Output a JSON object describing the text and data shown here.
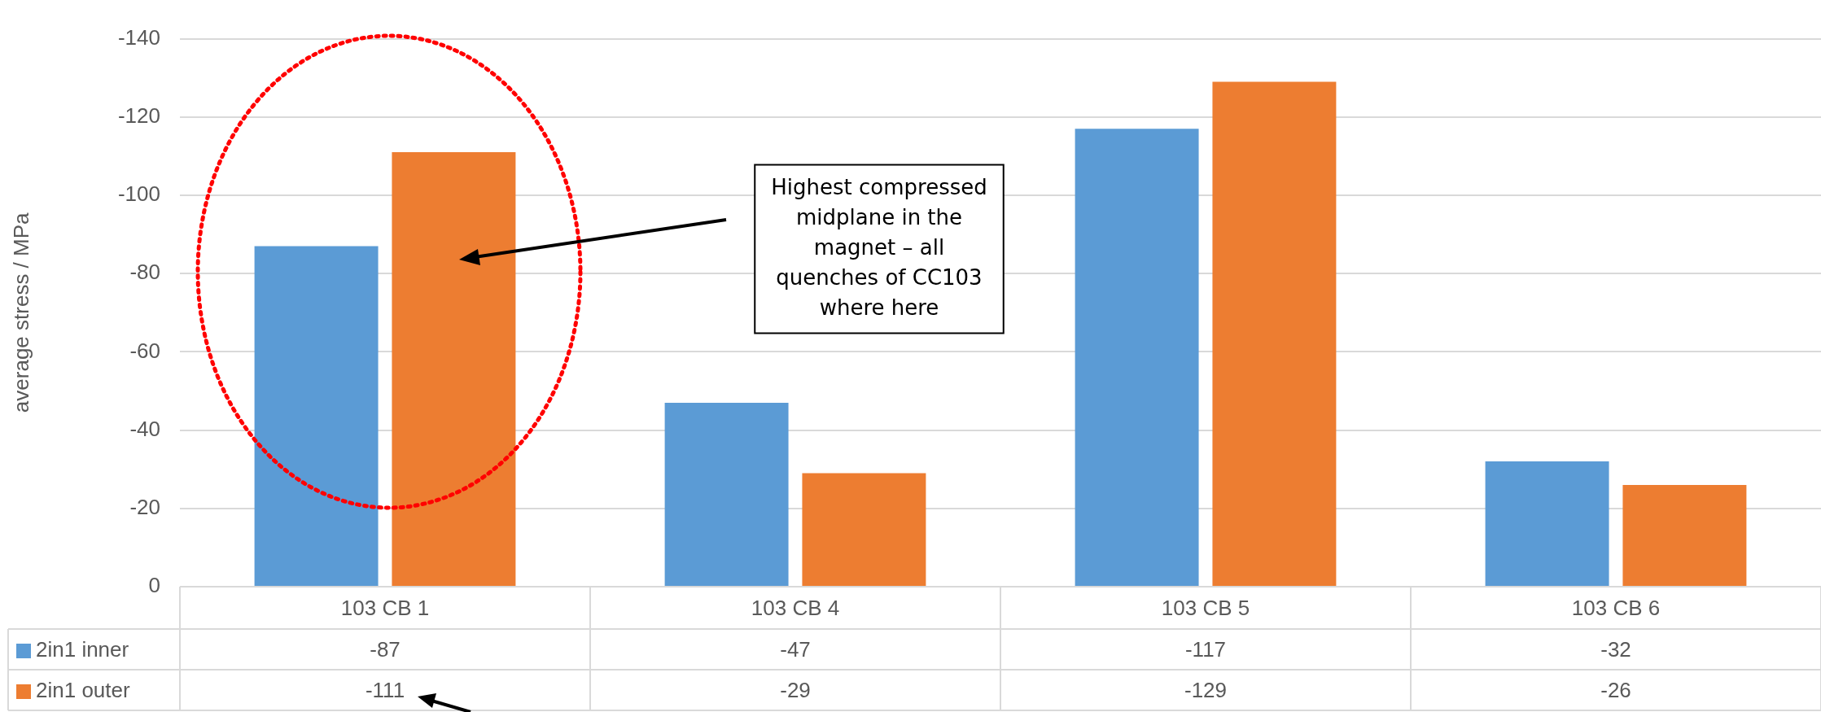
{
  "chart_data": {
    "type": "bar",
    "ylabel": "average stress / MPa",
    "categories": [
      "103 CB 1",
      "103 CB 4",
      "103 CB 5",
      "103 CB 6"
    ],
    "series": [
      {
        "name": "2in1 inner",
        "color": "#5b9bd5",
        "values": [
          -87,
          -47,
          -117,
          -32
        ]
      },
      {
        "name": "2in1 outer",
        "color": "#ed7d31",
        "values": [
          -111,
          -29,
          -129,
          -26
        ]
      }
    ],
    "ylim": [
      0,
      -140
    ],
    "yticks": [
      0,
      -20,
      -40,
      -60,
      -80,
      -100,
      -120,
      -140
    ],
    "grid": "y",
    "legend": "bottom",
    "data_labels": true,
    "annotations": [
      "Highest compressed\nmidplane in the\nmagnet – all\nquenches of CC103\nwhere here"
    ]
  }
}
